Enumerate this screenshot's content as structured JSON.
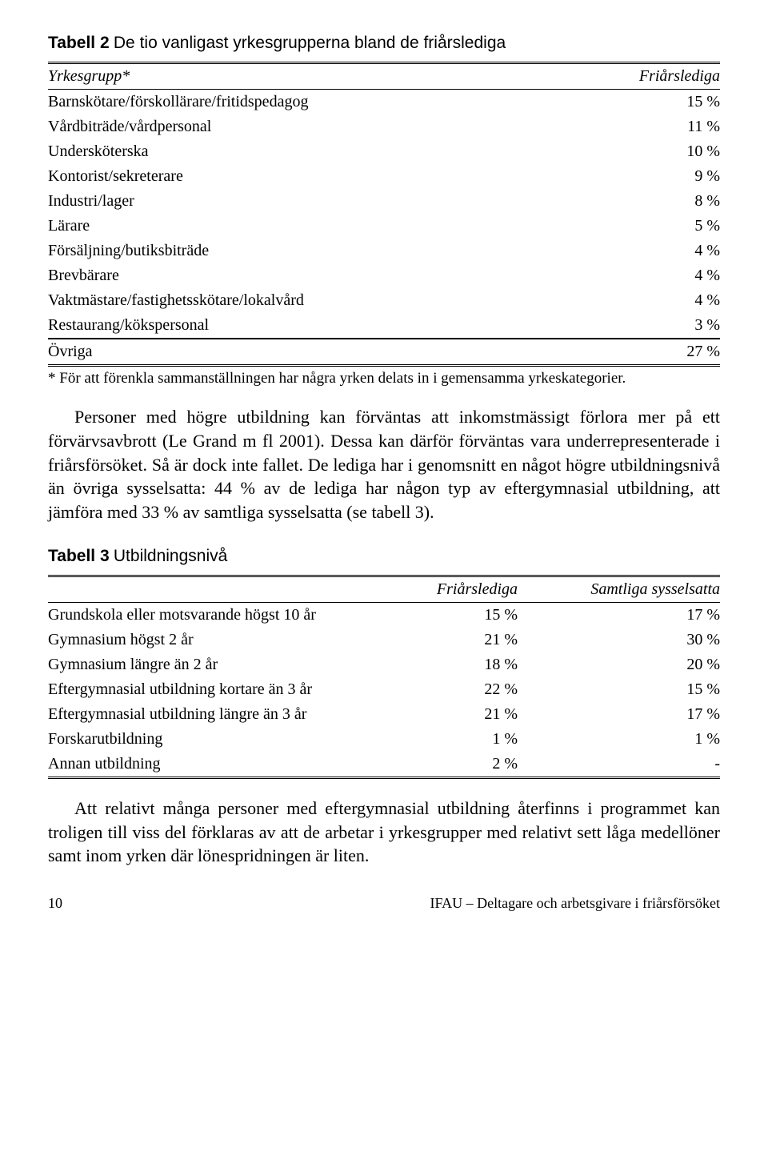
{
  "table2": {
    "label": "Tabell 2",
    "desc": "De tio vanligast yrkesgrupperna bland de friårslediga",
    "col1": "Yrkesgrupp*",
    "col2": "Friårslediga",
    "rows": [
      {
        "name": "Barnskötare/förskollärare/fritidspedagog",
        "val": "15 %"
      },
      {
        "name": "Vårdbiträde/vårdpersonal",
        "val": "11 %"
      },
      {
        "name": "Undersköterska",
        "val": "10 %"
      },
      {
        "name": "Kontorist/sekreterare",
        "val": "9 %"
      },
      {
        "name": "Industri/lager",
        "val": "8 %"
      },
      {
        "name": "Lärare",
        "val": "5 %"
      },
      {
        "name": "Försäljning/butiksbiträde",
        "val": "4 %"
      },
      {
        "name": "Brevbärare",
        "val": "4 %"
      },
      {
        "name": "Vaktmästare/fastighetsskötare/lokalvård",
        "val": "4 %"
      },
      {
        "name": "Restaurang/kökspersonal",
        "val": "3 %"
      }
    ],
    "ovriga_label": "Övriga",
    "ovriga_val": "27 %",
    "footnote": "* För att förenkla sammanställningen har några yrken delats in i gemensamma yrkeskategorier."
  },
  "para1": "Personer med högre utbildning kan förväntas att inkomstmässigt förlora mer på ett förvärvsavbrott (Le Grand m fl 2001). Dessa kan därför förväntas vara underrepresenterade i friårsförsöket. Så är dock inte fallet. De lediga har i genomsnitt en något högre utbildningsnivå än övriga sysselsatta: 44 % av de lediga har någon typ av eftergymnasial utbildning, att jämföra med 33 % av samtliga sysselsatta (se tabell 3).",
  "table3": {
    "label": "Tabell 3",
    "desc": "Utbildningsnivå",
    "col2": "Friårslediga",
    "col3": "Samtliga sysselsatta",
    "rows": [
      {
        "name": "Grundskola eller motsvarande högst 10 år",
        "v1": "15 %",
        "v2": "17 %"
      },
      {
        "name": "Gymnasium högst 2 år",
        "v1": "21 %",
        "v2": "30 %"
      },
      {
        "name": "Gymnasium längre än 2 år",
        "v1": "18 %",
        "v2": "20 %"
      },
      {
        "name": "Eftergymnasial utbildning kortare än 3 år",
        "v1": "22 %",
        "v2": "15 %"
      },
      {
        "name": "Eftergymnasial utbildning längre än 3 år",
        "v1": "21 %",
        "v2": "17 %"
      },
      {
        "name": "Forskarutbildning",
        "v1": "1 %",
        "v2": "1 %"
      },
      {
        "name": "Annan utbildning",
        "v1": "2 %",
        "v2": "-"
      }
    ]
  },
  "para2": "Att relativt många personer med eftergymnasial utbildning återfinns i programmet kan troligen till viss del förklaras av att de arbetar i yrkesgrupper med relativt sett låga medellöner samt inom yrken där lönespridningen är liten.",
  "footer_page": "10",
  "footer_text": "IFAU – Deltagare och arbetsgivare i friårsförsöket"
}
